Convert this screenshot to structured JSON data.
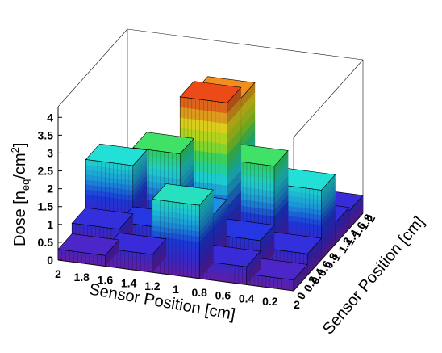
{
  "chart_data": {
    "type": "lego3d",
    "xlabel": "Sensor Position [cm]",
    "ylabel": "Sensor Position [cm]",
    "zlabel": "Dose [n",
    "zlabel_sub": "eq",
    "zlabel_tail": "/cm",
    "zlabel_sup": "2",
    "zlabel_close": "]",
    "x_ticks": [
      "2",
      "1.8",
      "1.6",
      "1.4",
      "1.2",
      "1",
      "0.8",
      "0.6",
      "0.4",
      "0.2"
    ],
    "x_end_tick": "2",
    "y_ticks": [
      "0",
      "0.2",
      "0.4",
      "0.6",
      "0.8",
      "1",
      "1.2",
      "1.4",
      "1.6",
      "1.8"
    ],
    "y_end_tick": "2",
    "z_ticks": [
      "0",
      "0.5",
      "1",
      "1.5",
      "2",
      "2.5",
      "3",
      "3.5",
      "4"
    ],
    "xlim": [
      0,
      2
    ],
    "ylim": [
      0,
      2
    ],
    "zlim": [
      0,
      4.3
    ],
    "bin_edges": [
      0,
      0.4,
      0.8,
      1.2,
      1.6,
      2.0
    ],
    "values": [
      [
        0.3,
        0.5,
        2.05,
        0.5,
        0.3
      ],
      [
        0.6,
        0.8,
        1.35,
        0.8,
        0.6
      ],
      [
        1.95,
        2.45,
        4.05,
        2.45,
        1.95
      ],
      [
        0.6,
        0.8,
        3.75,
        0.8,
        0.6
      ],
      [
        0.5,
        0.7,
        1.45,
        0.7,
        0.5
      ]
    ],
    "palette": [
      "#6a1fb0",
      "#3b2ad8",
      "#1e3ce8",
      "#1ea0e8",
      "#22e0e0",
      "#30e070",
      "#a8e820",
      "#f0e020",
      "#f08020",
      "#e81010"
    ],
    "grid": false
  }
}
